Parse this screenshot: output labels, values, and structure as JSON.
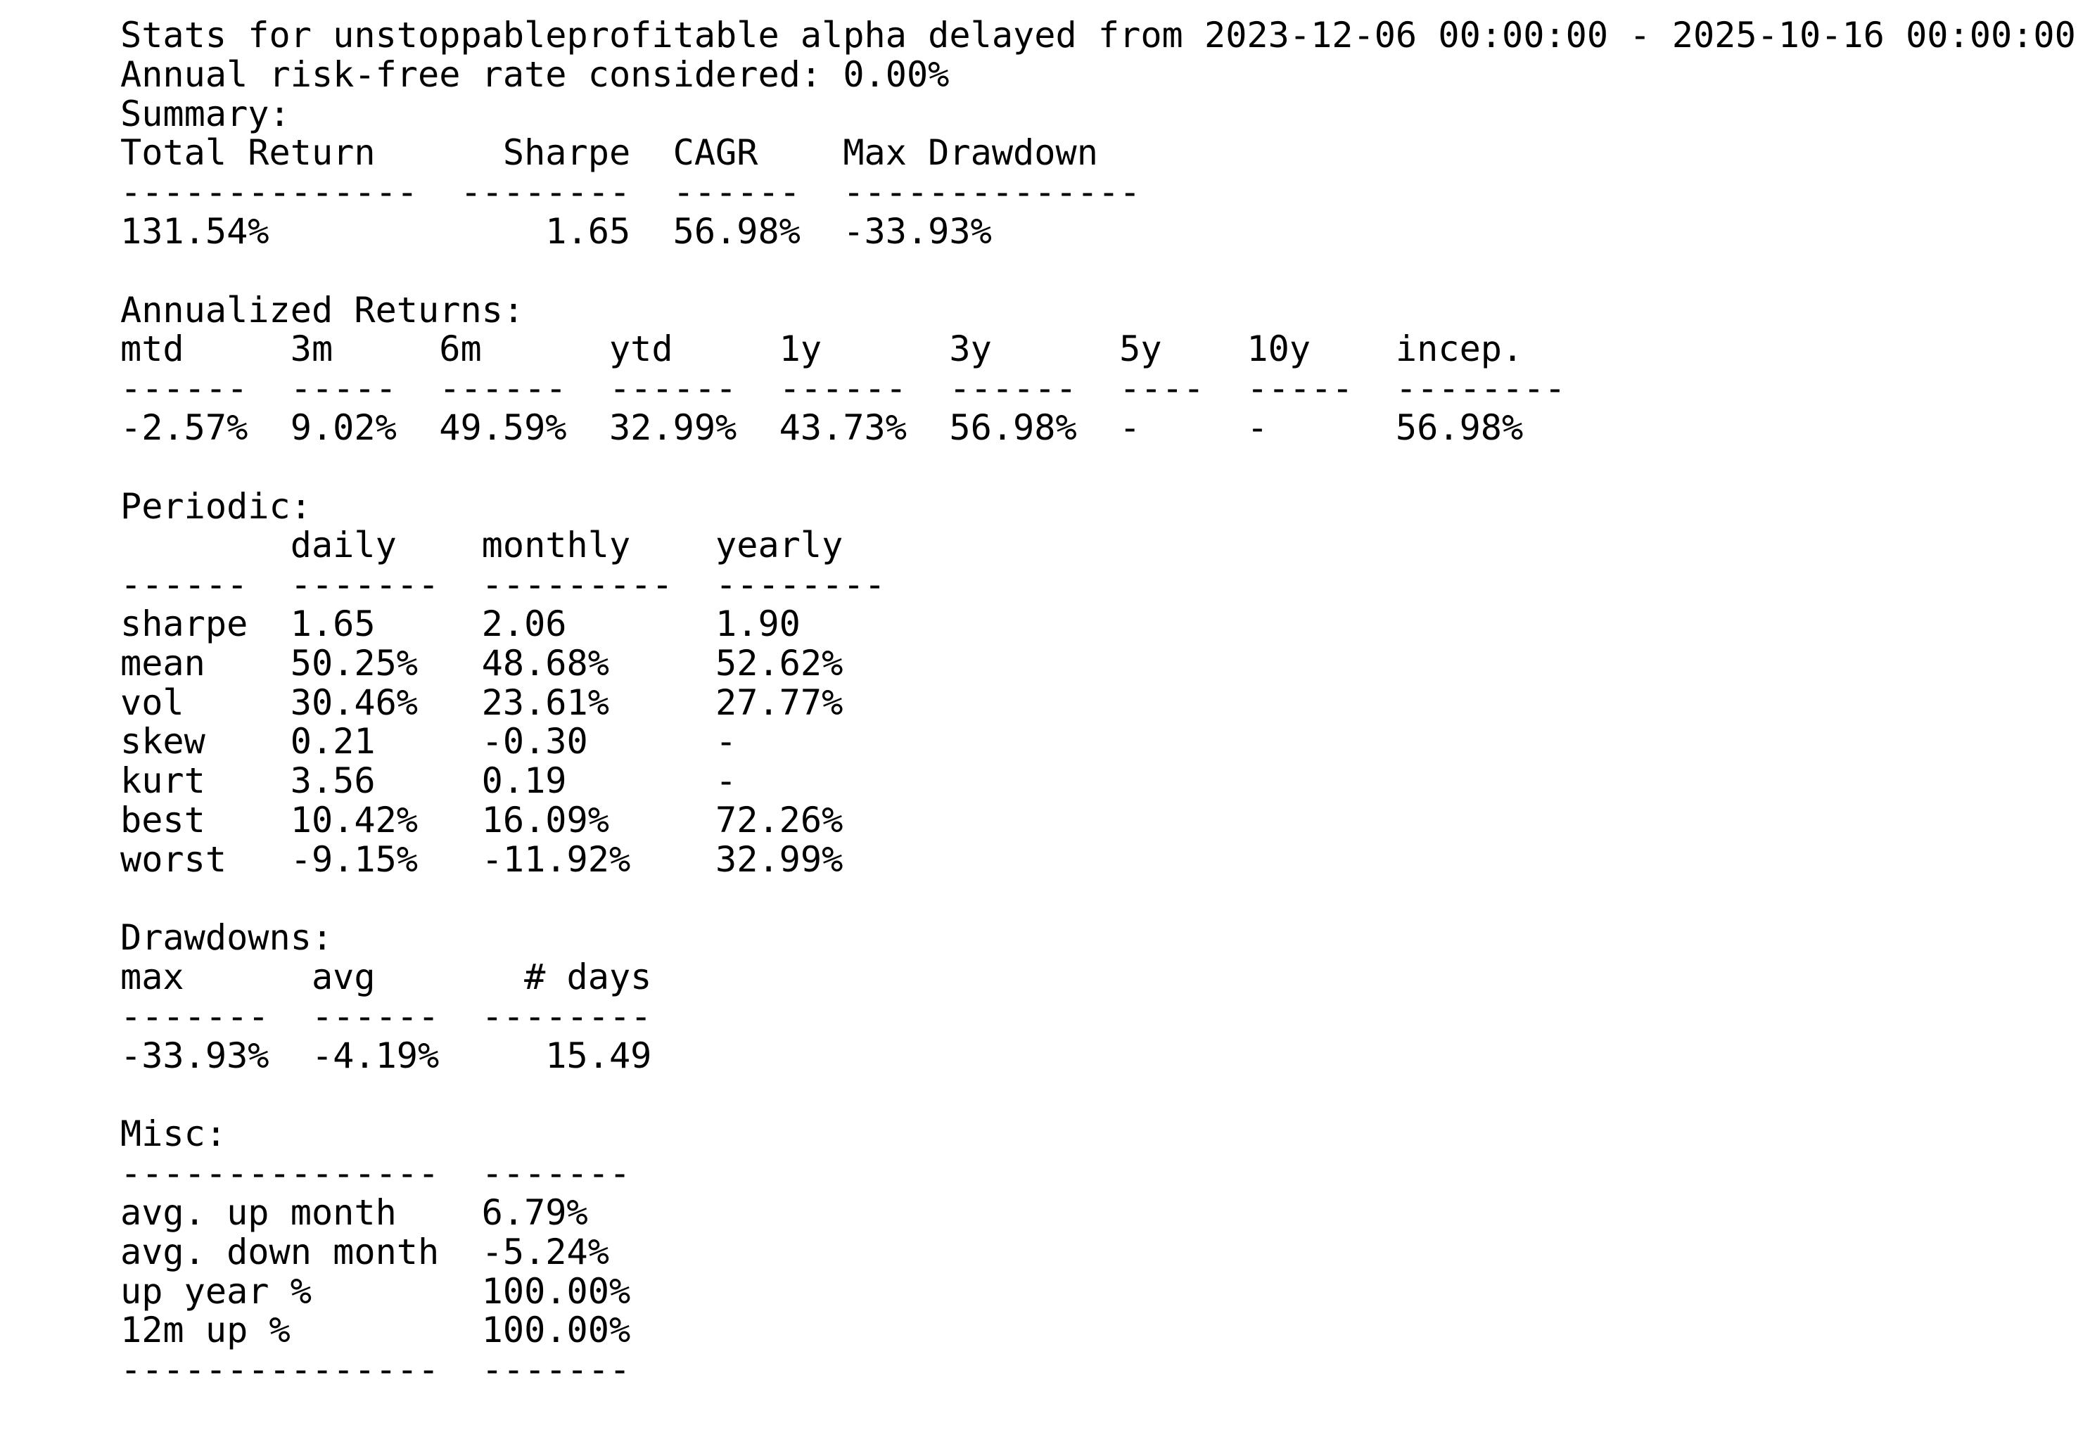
{
  "report": {
    "lines": [
      "Stats for unstoppableprofitable alpha delayed from 2023-12-06 00:00:00 - 2025-10-16 00:00:00",
      "Annual risk-free rate considered: 0.00%",
      "Summary:",
      "Total Return      Sharpe  CAGR    Max Drawdown",
      "--------------  --------  ------  --------------",
      "131.54%             1.65  56.98%  -33.93%",
      "",
      "Annualized Returns:",
      "mtd     3m     6m      ytd     1y      3y      5y    10y    incep.",
      "------  -----  ------  ------  ------  ------  ----  -----  --------",
      "-2.57%  9.02%  49.59%  32.99%  43.73%  56.98%  -     -      56.98%",
      "",
      "Periodic:",
      "        daily    monthly    yearly",
      "------  -------  ---------  --------",
      "sharpe  1.65     2.06       1.90",
      "mean    50.25%   48.68%     52.62%",
      "vol     30.46%   23.61%     27.77%",
      "skew    0.21     -0.30      -",
      "kurt    3.56     0.19       -",
      "best    10.42%   16.09%     72.26%",
      "worst   -9.15%   -11.92%    32.99%",
      "",
      "Drawdowns:",
      "max      avg       # days",
      "-------  ------  --------",
      "-33.93%  -4.19%     15.49",
      "",
      "Misc:",
      "---------------  -------",
      "avg. up month    6.79%",
      "avg. down month  -5.24%",
      "up year %        100.00%",
      "12m up %         100.00%",
      "---------------  -------"
    ]
  }
}
